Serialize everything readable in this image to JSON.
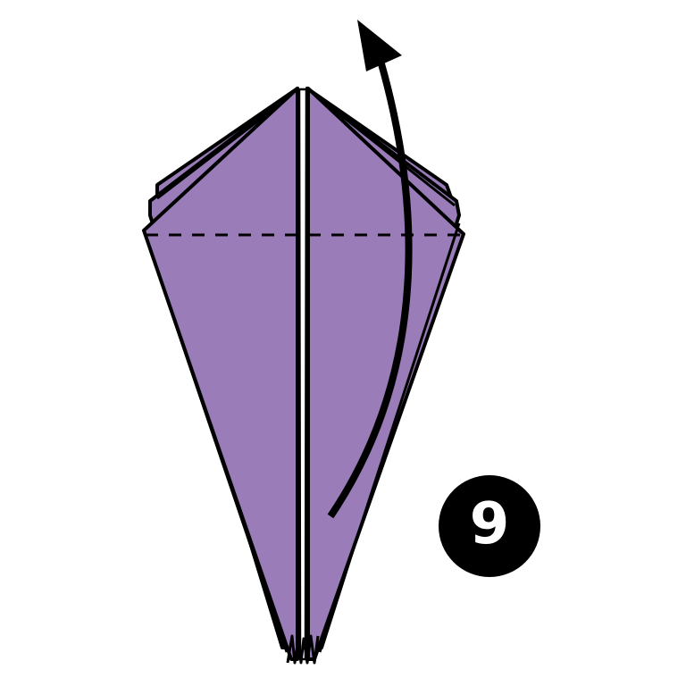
{
  "step": {
    "number": "9"
  },
  "colors": {
    "paper": "#9a7cb8",
    "line": "#000000",
    "background": "#ffffff",
    "badge": "#000000",
    "badge_text": "#ffffff"
  },
  "diagram": {
    "subject": "origami-fold-step",
    "fold_line": "dashed-horizontal",
    "action_arrow": "curved-up-arrow"
  }
}
